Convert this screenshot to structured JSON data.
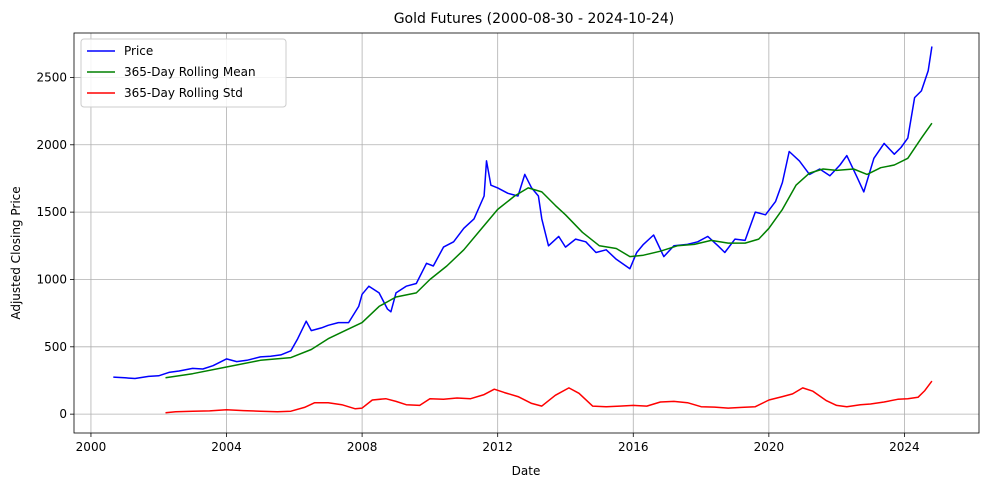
{
  "chart_data": {
    "type": "line",
    "title": "Gold Futures (2000-08-30 - 2024-10-24)",
    "xlabel": "Date",
    "ylabel": "Adjusted Closing Price",
    "xlim": [
      1999.5,
      2026.2
    ],
    "ylim": [
      -140,
      2830
    ],
    "xticks": [
      2000,
      2004,
      2008,
      2012,
      2016,
      2020,
      2024
    ],
    "xtick_labels": [
      "2000",
      "2004",
      "2008",
      "2012",
      "2016",
      "2020",
      "2024"
    ],
    "yticks": [
      0,
      500,
      1000,
      1500,
      2000,
      2500
    ],
    "ytick_labels": [
      "0",
      "500",
      "1000",
      "1500",
      "2000",
      "2500"
    ],
    "grid": true,
    "legend_position": "top-left",
    "series": [
      {
        "name": "Price",
        "color": "#0000ff",
        "x": [
          2000.66,
          2001.0,
          2001.3,
          2001.7,
          2002.0,
          2002.3,
          2002.6,
          2003.0,
          2003.3,
          2003.6,
          2004.0,
          2004.3,
          2004.6,
          2005.0,
          2005.3,
          2005.6,
          2005.9,
          2006.1,
          2006.35,
          2006.5,
          2006.8,
          2007.0,
          2007.3,
          2007.6,
          2007.9,
          2008.0,
          2008.2,
          2008.5,
          2008.75,
          2008.85,
          2009.0,
          2009.3,
          2009.6,
          2009.9,
          2010.1,
          2010.4,
          2010.7,
          2011.0,
          2011.3,
          2011.6,
          2011.67,
          2011.8,
          2012.0,
          2012.3,
          2012.6,
          2012.8,
          2013.0,
          2013.2,
          2013.3,
          2013.5,
          2013.8,
          2014.0,
          2014.3,
          2014.6,
          2014.9,
          2015.2,
          2015.5,
          2015.9,
          2016.1,
          2016.3,
          2016.6,
          2016.9,
          2017.2,
          2017.6,
          2017.9,
          2018.2,
          2018.5,
          2018.7,
          2019.0,
          2019.3,
          2019.6,
          2019.9,
          2020.2,
          2020.4,
          2020.6,
          2020.9,
          2021.2,
          2021.5,
          2021.8,
          2022.1,
          2022.3,
          2022.6,
          2022.8,
          2023.1,
          2023.4,
          2023.7,
          2023.9,
          2024.1,
          2024.3,
          2024.5,
          2024.7,
          2024.81
        ],
        "y": [
          275,
          270,
          265,
          280,
          285,
          310,
          320,
          340,
          335,
          360,
          410,
          390,
          400,
          425,
          430,
          440,
          470,
          560,
          690,
          620,
          640,
          660,
          680,
          680,
          800,
          890,
          950,
          900,
          780,
          760,
          900,
          950,
          970,
          1120,
          1100,
          1240,
          1280,
          1380,
          1450,
          1620,
          1880,
          1700,
          1680,
          1640,
          1620,
          1780,
          1680,
          1620,
          1450,
          1250,
          1320,
          1240,
          1300,
          1280,
          1200,
          1220,
          1150,
          1080,
          1200,
          1260,
          1330,
          1170,
          1250,
          1260,
          1280,
          1320,
          1250,
          1200,
          1300,
          1290,
          1500,
          1480,
          1580,
          1720,
          1950,
          1880,
          1780,
          1820,
          1770,
          1850,
          1920,
          1760,
          1650,
          1900,
          2010,
          1930,
          1980,
          2050,
          2350,
          2400,
          2550,
          2730
        ]
      },
      {
        "name": "365-Day Rolling Mean",
        "color": "#008000",
        "x": [
          2002.2,
          2003.0,
          2004.0,
          2005.0,
          2005.9,
          2006.5,
          2007.0,
          2007.5,
          2008.0,
          2008.5,
          2009.0,
          2009.6,
          2010.0,
          2010.5,
          2011.0,
          2011.5,
          2012.0,
          2012.5,
          2012.9,
          2013.3,
          2013.7,
          2014.0,
          2014.5,
          2015.0,
          2015.5,
          2015.9,
          2016.3,
          2016.8,
          2017.3,
          2017.8,
          2018.3,
          2018.8,
          2019.3,
          2019.7,
          2020.0,
          2020.4,
          2020.8,
          2021.2,
          2021.6,
          2022.0,
          2022.5,
          2022.9,
          2023.3,
          2023.7,
          2024.1,
          2024.5,
          2024.81
        ],
        "y": [
          270,
          300,
          350,
          400,
          420,
          480,
          560,
          620,
          680,
          800,
          870,
          900,
          1000,
          1100,
          1220,
          1370,
          1520,
          1620,
          1680,
          1650,
          1550,
          1480,
          1350,
          1250,
          1230,
          1170,
          1180,
          1210,
          1250,
          1260,
          1290,
          1270,
          1270,
          1300,
          1380,
          1520,
          1700,
          1790,
          1820,
          1810,
          1820,
          1780,
          1830,
          1850,
          1900,
          2050,
          2160
        ]
      },
      {
        "name": "365-Day Rolling Std",
        "color": "#ff0000",
        "x": [
          2002.2,
          2002.5,
          2003.0,
          2003.5,
          2004.0,
          2004.5,
          2005.0,
          2005.5,
          2005.9,
          2006.3,
          2006.6,
          2007.0,
          2007.4,
          2007.8,
          2008.0,
          2008.3,
          2008.7,
          2009.0,
          2009.3,
          2009.7,
          2010.0,
          2010.4,
          2010.8,
          2011.2,
          2011.6,
          2011.9,
          2012.2,
          2012.6,
          2013.0,
          2013.3,
          2013.7,
          2014.1,
          2014.4,
          2014.8,
          2015.2,
          2015.6,
          2016.0,
          2016.4,
          2016.8,
          2017.2,
          2017.6,
          2018.0,
          2018.4,
          2018.8,
          2019.2,
          2019.6,
          2020.0,
          2020.4,
          2020.7,
          2021.0,
          2021.3,
          2021.7,
          2022.0,
          2022.3,
          2022.7,
          2023.0,
          2023.4,
          2023.8,
          2024.1,
          2024.4,
          2024.6,
          2024.81
        ],
        "y": [
          10,
          18,
          22,
          24,
          32,
          26,
          22,
          18,
          22,
          50,
          85,
          85,
          70,
          40,
          45,
          105,
          115,
          95,
          70,
          65,
          115,
          110,
          120,
          115,
          145,
          185,
          160,
          130,
          80,
          60,
          140,
          195,
          155,
          60,
          55,
          60,
          65,
          60,
          90,
          95,
          85,
          55,
          52,
          45,
          50,
          55,
          105,
          130,
          150,
          195,
          170,
          100,
          65,
          55,
          70,
          75,
          90,
          110,
          115,
          125,
          175,
          245
        ]
      }
    ]
  }
}
